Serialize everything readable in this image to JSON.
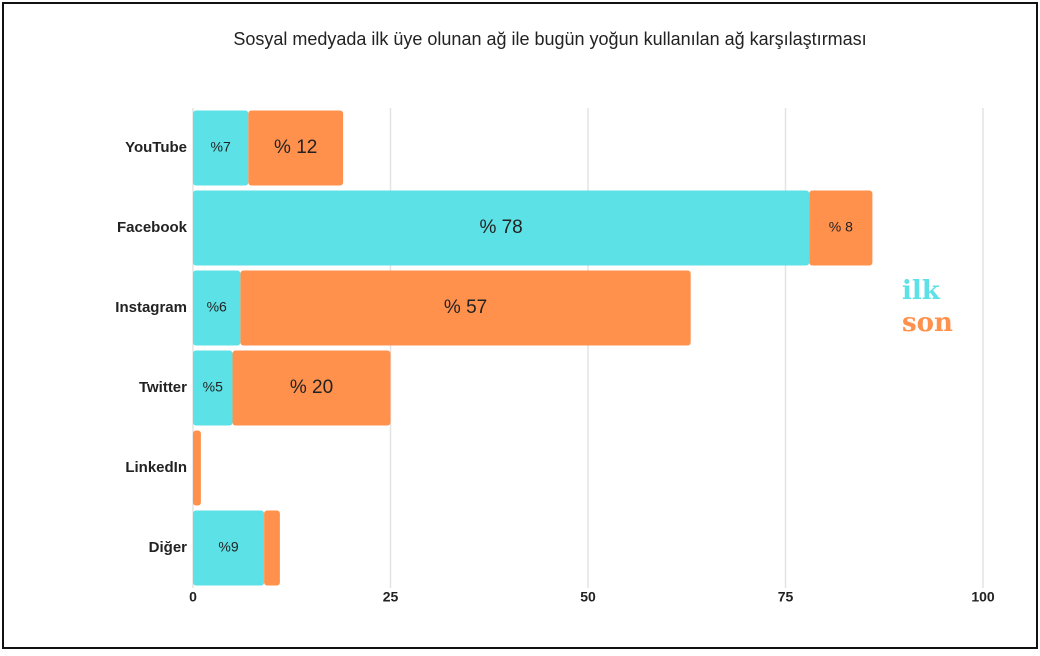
{
  "chart_data": {
    "type": "stacked_barh",
    "title": "Sosyal medyada ilk üye olunan ağ ile bugün yoğun kullanılan ağ karşılaştırması",
    "categories": [
      "YouTube",
      "Facebook",
      "Instagram",
      "Twitter",
      "LinkedIn",
      "Diğer"
    ],
    "series": [
      {
        "name": "ilk",
        "color": "#5ce1e6",
        "values": [
          7,
          78,
          6,
          5,
          0,
          9
        ],
        "value_labels": [
          "%7",
          "% 78",
          "%6",
          "%5",
          null,
          "%9"
        ]
      },
      {
        "name": "son",
        "color": "#ff914d",
        "values": [
          12,
          8,
          57,
          20,
          1,
          2
        ],
        "value_labels": [
          "% 12",
          "% 8",
          "% 57",
          "% 20",
          null,
          null
        ]
      }
    ],
    "xlim": [
      0,
      100
    ],
    "xticks": [
      0,
      25,
      50,
      75,
      100
    ],
    "grid": true,
    "legend": "right"
  }
}
